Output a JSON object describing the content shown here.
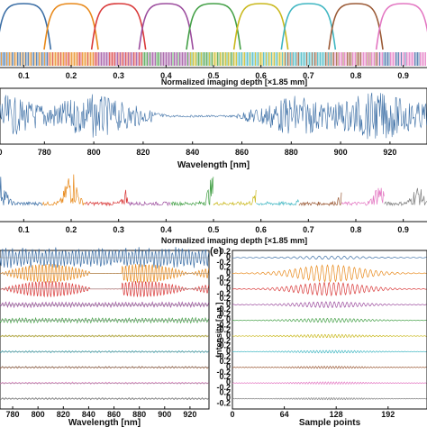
{
  "chart_data": [
    {
      "type": "line",
      "panel": "top",
      "xlabel": "Normalized imaging depth [×1.85 mm]",
      "x_ticks": [
        "0.1",
        "0.2",
        "0.3",
        "0.4",
        "0.5",
        "0.6",
        "0.7",
        "0.8",
        "0.9"
      ],
      "xlim": [
        0.05,
        0.95
      ],
      "filter_centers": [
        0.1,
        0.2,
        0.3,
        0.4,
        0.5,
        0.6,
        0.7,
        0.8,
        0.9
      ],
      "grid": false
    },
    {
      "type": "line",
      "panel": "interferogram",
      "xlabel": "Wavelength [nm]",
      "x_ticks": [
        "0",
        "780",
        "800",
        "820",
        "840",
        "860",
        "880",
        "900",
        "920"
      ],
      "xlim": [
        762,
        935
      ],
      "series": [
        {
          "color": "#3b6ea5"
        }
      ]
    },
    {
      "type": "line",
      "panel": "depth-profile",
      "xlabel": "Normalized imaging depth [×1.85 mm]",
      "x_ticks": [
        "0.1",
        "0.2",
        "0.3",
        "0.4",
        "0.5",
        "0.6",
        "0.7",
        "0.8",
        "0.9"
      ],
      "xlim": [
        0.05,
        0.95
      ],
      "peaks": [
        0.05,
        0.2,
        0.33,
        0.44,
        0.5,
        0.6,
        0.7,
        0.78,
        0.85,
        0.93
      ]
    },
    {
      "type": "line",
      "panel": "d",
      "xlabel": "Wavelength [nm]",
      "x_ticks": [
        "780",
        "800",
        "820",
        "840",
        "860",
        "880",
        "900",
        "920"
      ],
      "xlim": [
        770,
        935
      ],
      "rows": 10
    },
    {
      "type": "line",
      "panel": "e",
      "panel_label": "(e)",
      "xlabel": "Sample points",
      "ylabel": "Intensity [a.u.]",
      "x_ticks": [
        "0",
        "64",
        "128",
        "192"
      ],
      "xlim": [
        0,
        240
      ],
      "y_tick_labels": [
        "0.2",
        "0",
        "-0.2"
      ],
      "rows": 10
    }
  ],
  "colors": {
    "series": [
      "#3b6ea5",
      "#e8891a",
      "#d93a3a",
      "#9c4d9e",
      "#44a047",
      "#c9b81c",
      "#3fb6c2",
      "#9b5a36",
      "#e377c2",
      "#7f7f7f"
    ],
    "axis": "#111111"
  }
}
